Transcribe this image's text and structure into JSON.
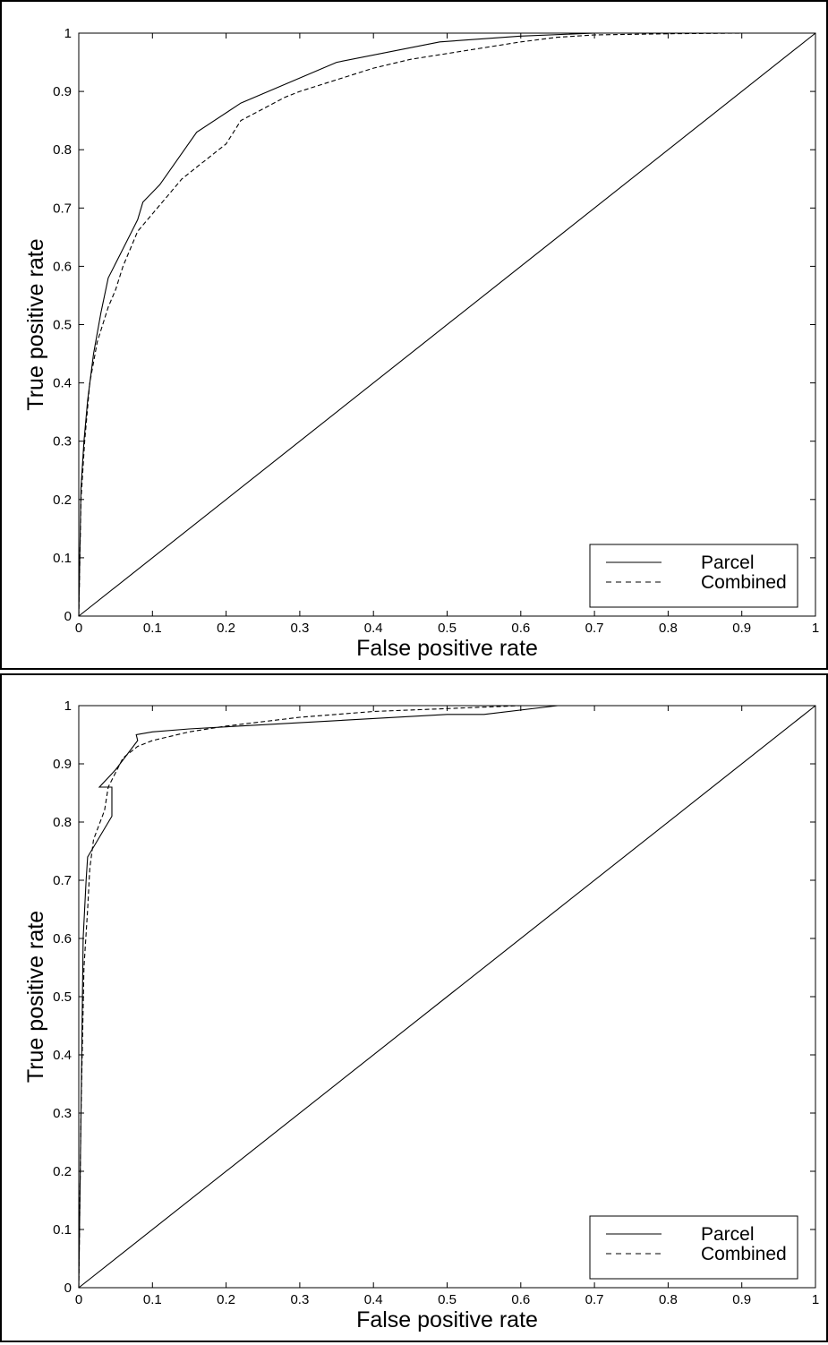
{
  "chart_data": [
    {
      "type": "line",
      "title": "",
      "xlabel": "False positive rate",
      "ylabel": "True positive rate",
      "xlim": [
        0,
        1
      ],
      "ylim": [
        0,
        1
      ],
      "xticks": [
        "0",
        "0.1",
        "0.2",
        "0.3",
        "0.4",
        "0.5",
        "0.6",
        "0.7",
        "0.8",
        "0.9",
        "1"
      ],
      "yticks": [
        "0",
        "0.1",
        "0.2",
        "0.3",
        "0.4",
        "0.5",
        "0.6",
        "0.7",
        "0.8",
        "0.9",
        "1"
      ],
      "grid": false,
      "legend_position": "bottom-right",
      "series": [
        {
          "name": "Parcel",
          "style": "solid",
          "x": [
            0,
            0.003,
            0.007,
            0.012,
            0.02,
            0.03,
            0.04,
            0.06,
            0.08,
            0.087,
            0.11,
            0.16,
            0.22,
            0.35,
            0.49,
            0.6,
            0.7,
            0.8,
            0.9,
            1
          ],
          "y": [
            0,
            0.22,
            0.3,
            0.37,
            0.45,
            0.52,
            0.58,
            0.63,
            0.68,
            0.71,
            0.74,
            0.83,
            0.88,
            0.95,
            0.985,
            0.995,
            1,
            1,
            1,
            1
          ]
        },
        {
          "name": "Combined",
          "style": "dashed",
          "x": [
            0,
            0.003,
            0.008,
            0.015,
            0.025,
            0.04,
            0.05,
            0.06,
            0.07,
            0.08,
            0.1,
            0.12,
            0.14,
            0.16,
            0.18,
            0.2,
            0.22,
            0.25,
            0.28,
            0.3,
            0.35,
            0.4,
            0.45,
            0.5,
            0.55,
            0.6,
            0.65,
            0.7,
            0.8,
            0.9,
            1
          ],
          "y": [
            0,
            0.2,
            0.3,
            0.4,
            0.47,
            0.53,
            0.56,
            0.6,
            0.63,
            0.66,
            0.69,
            0.72,
            0.75,
            0.77,
            0.79,
            0.81,
            0.85,
            0.87,
            0.89,
            0.9,
            0.92,
            0.94,
            0.955,
            0.965,
            0.975,
            0.985,
            0.993,
            0.997,
            0.999,
            1,
            1
          ]
        },
        {
          "name": "",
          "style": "diagonal",
          "x": [
            0,
            1
          ],
          "y": [
            0,
            1
          ]
        }
      ],
      "legend": [
        "Parcel",
        "Combined"
      ]
    },
    {
      "type": "line",
      "title": "",
      "xlabel": "False positive rate",
      "ylabel": "True positive rate",
      "xlim": [
        0,
        1
      ],
      "ylim": [
        0,
        1
      ],
      "xticks": [
        "0",
        "0.1",
        "0.2",
        "0.3",
        "0.4",
        "0.5",
        "0.6",
        "0.7",
        "0.8",
        "0.9",
        "1"
      ],
      "yticks": [
        "0",
        "0.1",
        "0.2",
        "0.3",
        "0.4",
        "0.5",
        "0.6",
        "0.7",
        "0.8",
        "0.9",
        "1"
      ],
      "grid": false,
      "legend_position": "bottom-right",
      "series": [
        {
          "name": "Parcel",
          "style": "solid",
          "x": [
            0,
            0.003,
            0.006,
            0.01,
            0.012,
            0.045,
            0.045,
            0.035,
            0.028,
            0.05,
            0.08,
            0.078,
            0.1,
            0.15,
            0.5,
            0.55,
            0.65,
            0.7,
            0.8,
            0.9,
            1
          ],
          "y": [
            0,
            0.3,
            0.6,
            0.7,
            0.74,
            0.81,
            0.86,
            0.86,
            0.86,
            0.89,
            0.94,
            0.95,
            0.955,
            0.96,
            0.985,
            0.985,
            1,
            1,
            1,
            1,
            1
          ],
          "_note_": ""
        },
        {
          "name": "Combined",
          "style": "dashed",
          "x": [
            0,
            0.003,
            0.007,
            0.012,
            0.015,
            0.02,
            0.035,
            0.04,
            0.06,
            0.08,
            0.1,
            0.15,
            0.2,
            0.3,
            0.4,
            0.5,
            0.6,
            0.7,
            0.8,
            0.9,
            1
          ],
          "y": [
            0,
            0.3,
            0.55,
            0.65,
            0.72,
            0.77,
            0.82,
            0.86,
            0.91,
            0.93,
            0.94,
            0.955,
            0.965,
            0.98,
            0.99,
            0.995,
            1,
            1,
            1,
            1,
            1
          ]
        },
        {
          "name": "",
          "style": "diagonal",
          "x": [
            0,
            1
          ],
          "y": [
            0,
            1
          ]
        }
      ],
      "legend": [
        "Parcel",
        "Combined"
      ]
    }
  ]
}
